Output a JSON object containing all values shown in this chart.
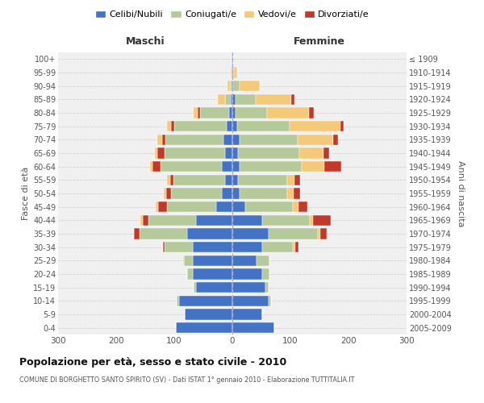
{
  "age_groups": [
    "100+",
    "95-99",
    "90-94",
    "85-89",
    "80-84",
    "75-79",
    "70-74",
    "65-69",
    "60-64",
    "55-59",
    "50-54",
    "45-49",
    "40-44",
    "35-39",
    "30-34",
    "25-29",
    "20-24",
    "15-19",
    "10-14",
    "5-9",
    "0-4"
  ],
  "birth_years": [
    "≤ 1909",
    "1910-1914",
    "1915-1919",
    "1920-1924",
    "1925-1929",
    "1930-1934",
    "1935-1939",
    "1940-1944",
    "1945-1949",
    "1950-1954",
    "1955-1959",
    "1960-1964",
    "1965-1969",
    "1970-1974",
    "1975-1979",
    "1980-1984",
    "1985-1989",
    "1990-1994",
    "1995-1999",
    "2000-2004",
    "2005-2009"
  ],
  "maschi": {
    "celibi": [
      1,
      1,
      1,
      3,
      5,
      10,
      15,
      12,
      18,
      12,
      18,
      28,
      62,
      78,
      68,
      68,
      68,
      62,
      92,
      82,
      97
    ],
    "coniugati": [
      0,
      0,
      3,
      10,
      50,
      90,
      100,
      105,
      105,
      90,
      88,
      85,
      82,
      82,
      48,
      15,
      10,
      4,
      4,
      0,
      0
    ],
    "vedovi": [
      1,
      2,
      5,
      12,
      6,
      8,
      8,
      5,
      4,
      5,
      4,
      4,
      4,
      0,
      0,
      2,
      0,
      0,
      0,
      0,
      0
    ],
    "divorziati": [
      0,
      0,
      0,
      0,
      5,
      5,
      6,
      12,
      15,
      5,
      8,
      15,
      10,
      10,
      4,
      0,
      0,
      0,
      0,
      0,
      0
    ]
  },
  "femmine": {
    "nubili": [
      1,
      1,
      2,
      5,
      5,
      8,
      12,
      10,
      12,
      10,
      12,
      22,
      52,
      62,
      52,
      42,
      52,
      57,
      62,
      52,
      72
    ],
    "coniugate": [
      0,
      2,
      10,
      35,
      55,
      90,
      100,
      105,
      108,
      85,
      82,
      82,
      82,
      85,
      52,
      22,
      12,
      5,
      5,
      0,
      0
    ],
    "vedove": [
      0,
      5,
      35,
      62,
      72,
      88,
      62,
      42,
      38,
      12,
      12,
      10,
      5,
      5,
      5,
      0,
      0,
      0,
      0,
      0,
      0
    ],
    "divorziate": [
      0,
      0,
      0,
      5,
      8,
      5,
      8,
      10,
      30,
      10,
      10,
      15,
      30,
      10,
      5,
      0,
      0,
      0,
      0,
      0,
      0
    ]
  },
  "colors": {
    "celibi": "#4472C4",
    "coniugati": "#b5c99a",
    "vedovi": "#f5c97a",
    "divorziati": "#c0392b"
  },
  "xlim": 300,
  "title": "Popolazione per età, sesso e stato civile - 2010",
  "subtitle": "COMUNE DI BORGHETTO SANTO SPIRITO (SV) - Dati ISTAT 1° gennaio 2010 - Elaborazione TUTTITALIA.IT",
  "ylabel_left": "Fasce di età",
  "ylabel_right": "Anni di nascita",
  "xlabel_maschi": "Maschi",
  "xlabel_femmine": "Femmine",
  "bg_color": "#f0f0f0",
  "grid_color": "#cccccc"
}
